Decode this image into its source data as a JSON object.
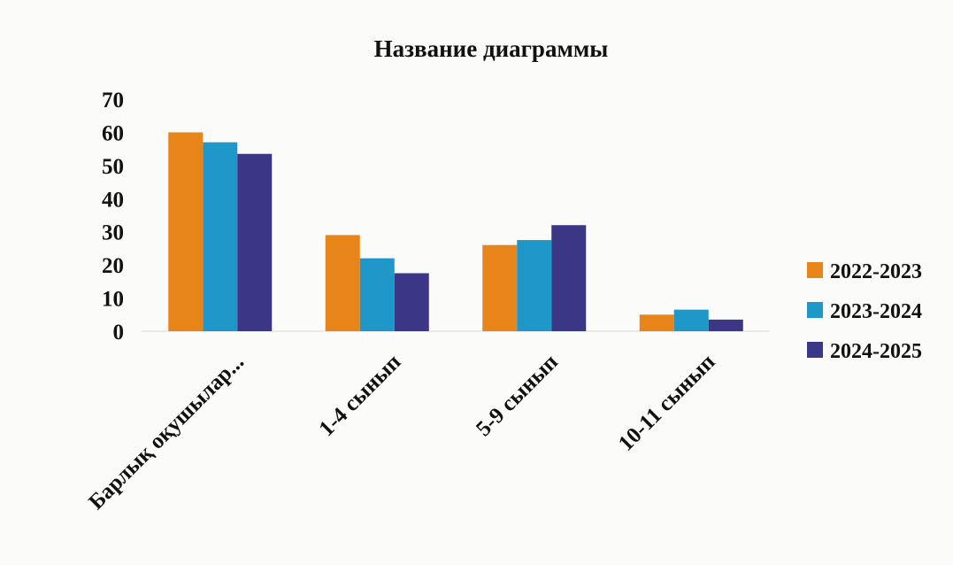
{
  "chart_data": {
    "type": "bar",
    "title": "Название диаграммы",
    "xlabel": "",
    "ylabel": "",
    "ylim": [
      0,
      70
    ],
    "yticks": [
      0,
      10,
      20,
      30,
      40,
      50,
      60,
      70
    ],
    "grid": false,
    "legend_position": "right",
    "categories": [
      "Барлық оқушылар...",
      "1-4 сынып",
      "5-9 сынып",
      "10-11 сынып"
    ],
    "series": [
      {
        "name": "2022-2023",
        "color": "#e8851a",
        "values": [
          60,
          29,
          26,
          5
        ]
      },
      {
        "name": "2023-2024",
        "color": "#1f98c9",
        "values": [
          57,
          22,
          27.5,
          6.5
        ]
      },
      {
        "name": "2024-2025",
        "color": "#3c3686",
        "values": [
          53.5,
          17.5,
          32,
          3.5
        ]
      }
    ]
  }
}
